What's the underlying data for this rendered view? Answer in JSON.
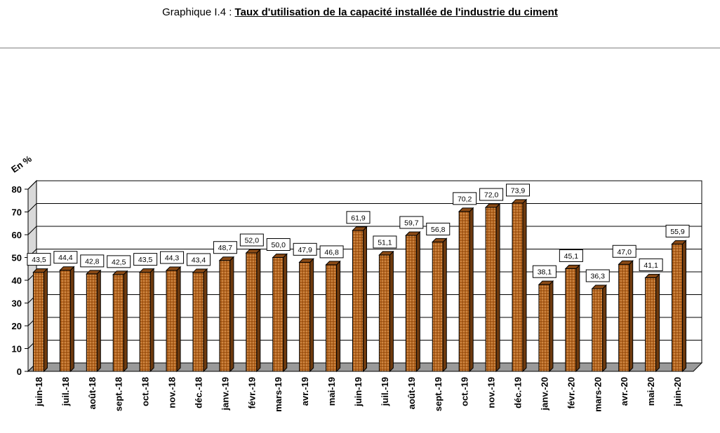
{
  "header": {
    "prefix": "Graphique I.4 :",
    "title": "Taux d'utilisation de la capacité installée de l'industrie du ciment"
  },
  "chart_data": {
    "type": "bar",
    "unit_label": "En %",
    "categories": [
      "juin-18",
      "juil.-18",
      "août-18",
      "sept.-18",
      "oct.-18",
      "nov.-18",
      "déc.-18",
      "janv.-19",
      "févr.-19",
      "mars-19",
      "avr.-19",
      "mai-19",
      "juin-19",
      "juil.-19",
      "août-19",
      "sept.-19",
      "oct.-19",
      "nov.-19",
      "déc.-19",
      "janv.-20",
      "févr.-20",
      "mars-20",
      "avr.-20",
      "mai-20",
      "juin-20"
    ],
    "values": [
      43.5,
      44.4,
      42.8,
      42.5,
      43.5,
      44.3,
      43.4,
      48.7,
      52.0,
      50.0,
      47.9,
      46.8,
      61.9,
      51.1,
      59.7,
      56.8,
      70.2,
      72.0,
      73.9,
      38.1,
      45.1,
      36.3,
      47.0,
      41.1,
      55.9
    ],
    "value_labels": [
      "43,5",
      "44,4",
      "42,8",
      "42,5",
      "43,5",
      "44,3",
      "43,4",
      "48,7",
      "52,0",
      "50,0",
      "47,9",
      "46,8",
      "61,9",
      "51,1",
      "59,7",
      "56,8",
      "70,2",
      "72,0",
      "73,9",
      "38,1",
      "45,1",
      "36,3",
      "47,0",
      "41,1",
      "55,9"
    ],
    "yticks": [
      "0",
      "10",
      "20",
      "30",
      "40",
      "50",
      "60",
      "70",
      "80"
    ],
    "ylim": [
      0,
      80
    ],
    "grid": true,
    "bar_color": "#b5651d",
    "bar_dark": "#6e3a0e",
    "plot_bg": "#ffffff"
  }
}
